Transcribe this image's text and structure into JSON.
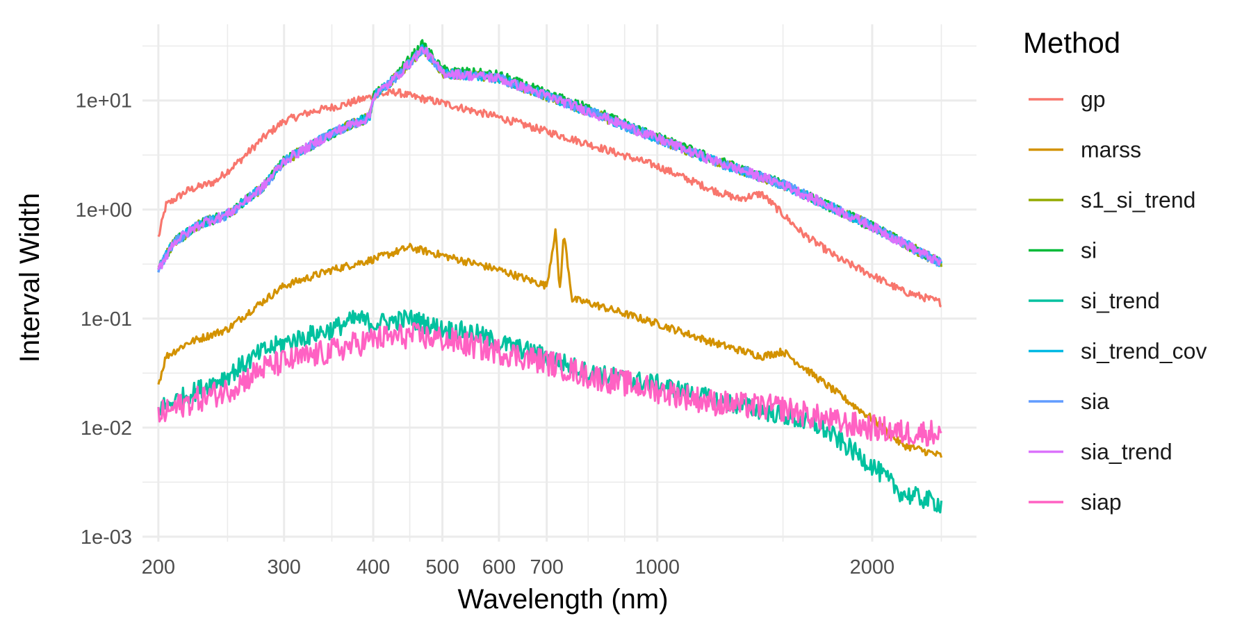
{
  "chart_data": {
    "type": "line",
    "title": "",
    "xlabel": "Wavelength (nm)",
    "ylabel": "Interval Width",
    "x_scale": "log",
    "y_scale": "log",
    "xlim": [
      190,
      2800
    ],
    "ylim": [
      0.0009,
      50
    ],
    "x_ticks": [
      200,
      300,
      400,
      500,
      600,
      700,
      1000,
      2000
    ],
    "x_tick_labels": [
      "200",
      "300",
      "400",
      "500",
      "600",
      "700",
      "1000",
      "2000"
    ],
    "x_minor_ticks": [
      250,
      350,
      450,
      800,
      900,
      1500,
      2500
    ],
    "y_ticks": [
      0.001,
      0.01,
      0.1,
      1,
      10
    ],
    "y_tick_labels": [
      "1e-03",
      "1e-02",
      "1e-01",
      "1e+00",
      "1e+01"
    ],
    "grid": true,
    "legend": {
      "title": "Method",
      "position": "right"
    },
    "series": [
      {
        "name": "gp",
        "color": "#F8766D",
        "x": [
          200,
          205,
          220,
          240,
          260,
          280,
          300,
          330,
          360,
          400,
          430,
          450,
          500,
          600,
          700,
          800,
          1000,
          1200,
          1300,
          1400,
          1600,
          1800,
          2000,
          2200,
          2500
        ],
        "y": [
          0.55,
          1.1,
          1.5,
          1.8,
          2.8,
          4.5,
          6.5,
          8,
          9,
          11,
          12,
          11,
          9.5,
          7,
          5.2,
          4,
          2.5,
          1.5,
          1.25,
          1.4,
          0.6,
          0.35,
          0.25,
          0.18,
          0.14
        ]
      },
      {
        "name": "marss",
        "color": "#D39200",
        "x": [
          200,
          205,
          220,
          250,
          270,
          300,
          350,
          400,
          450,
          500,
          600,
          700,
          720,
          730,
          740,
          760,
          800,
          1000,
          1200,
          1400,
          1500,
          1800,
          2000,
          2200,
          2500
        ],
        "y": [
          0.025,
          0.045,
          0.06,
          0.08,
          0.12,
          0.2,
          0.28,
          0.35,
          0.45,
          0.38,
          0.28,
          0.2,
          0.65,
          0.18,
          0.6,
          0.15,
          0.14,
          0.09,
          0.06,
          0.045,
          0.05,
          0.02,
          0.012,
          0.007,
          0.0055
        ]
      },
      {
        "name": "s1_si_trend",
        "color": "#93AA00",
        "x": [
          200,
          210,
          230,
          250,
          280,
          300,
          330,
          360,
          395,
          400,
          420,
          450,
          470,
          500,
          600,
          700,
          800,
          1000,
          1200,
          1500,
          2000,
          2500
        ],
        "y": [
          0.28,
          0.5,
          0.75,
          0.9,
          1.6,
          2.8,
          4,
          5.5,
          7,
          11,
          14,
          22,
          30,
          18,
          16,
          11,
          8,
          4.5,
          2.8,
          1.7,
          0.7,
          0.32
        ]
      },
      {
        "name": "si",
        "color": "#00BA38",
        "x": [
          200,
          210,
          230,
          250,
          280,
          300,
          330,
          360,
          395,
          400,
          420,
          450,
          470,
          500,
          600,
          700,
          800,
          1000,
          1200,
          1500,
          2000,
          2500
        ],
        "y": [
          0.28,
          0.5,
          0.75,
          0.9,
          1.6,
          2.8,
          4,
          5.5,
          7,
          11,
          14,
          24,
          33,
          19,
          17,
          11.5,
          8.5,
          4.6,
          2.9,
          1.7,
          0.7,
          0.32
        ]
      },
      {
        "name": "si_trend",
        "color": "#00C19F",
        "x": [
          200,
          220,
          250,
          280,
          300,
          350,
          380,
          400,
          450,
          500,
          550,
          600,
          700,
          800,
          1000,
          1200,
          1500,
          1700,
          2000,
          2200,
          2500
        ],
        "y": [
          0.015,
          0.02,
          0.03,
          0.05,
          0.06,
          0.08,
          0.1,
          0.09,
          0.1,
          0.08,
          0.075,
          0.06,
          0.045,
          0.032,
          0.025,
          0.018,
          0.013,
          0.01,
          0.0045,
          0.0025,
          0.002
        ]
      },
      {
        "name": "si_trend_cov",
        "color": "#00B9E3",
        "x": [
          200,
          210,
          230,
          250,
          280,
          300,
          330,
          360,
          395,
          400,
          420,
          450,
          470,
          500,
          600,
          700,
          800,
          1000,
          1200,
          1500,
          2000,
          2500
        ],
        "y": [
          0.28,
          0.5,
          0.75,
          0.9,
          1.6,
          2.8,
          4,
          5.5,
          7,
          11,
          14,
          22,
          30,
          18,
          16,
          11,
          8,
          4.5,
          2.8,
          1.7,
          0.7,
          0.32
        ]
      },
      {
        "name": "sia",
        "color": "#619CFF",
        "x": [
          200,
          210,
          230,
          250,
          280,
          300,
          330,
          360,
          395,
          400,
          420,
          450,
          470,
          500,
          600,
          700,
          800,
          1000,
          1200,
          1500,
          2000,
          2500
        ],
        "y": [
          0.28,
          0.5,
          0.75,
          0.9,
          1.6,
          2.8,
          4,
          5.5,
          7,
          11,
          14,
          22,
          30,
          18,
          16,
          11,
          8,
          4.5,
          2.8,
          1.7,
          0.7,
          0.32
        ]
      },
      {
        "name": "sia_trend",
        "color": "#DB72FB",
        "x": [
          200,
          210,
          230,
          250,
          280,
          300,
          330,
          360,
          395,
          400,
          420,
          450,
          470,
          500,
          600,
          700,
          800,
          1000,
          1200,
          1500,
          2000,
          2500
        ],
        "y": [
          0.28,
          0.5,
          0.75,
          0.9,
          1.6,
          2.8,
          4,
          5.5,
          7,
          11,
          14,
          22,
          30,
          18,
          16,
          11,
          8,
          4.5,
          2.8,
          1.7,
          0.7,
          0.32
        ]
      },
      {
        "name": "siap",
        "color": "#FF61C3",
        "x": [
          200,
          220,
          250,
          280,
          300,
          350,
          400,
          450,
          500,
          600,
          700,
          800,
          1000,
          1200,
          1300,
          1500,
          1800,
          2000,
          2200,
          2500
        ],
        "y": [
          0.013,
          0.017,
          0.022,
          0.035,
          0.04,
          0.05,
          0.065,
          0.07,
          0.065,
          0.05,
          0.04,
          0.03,
          0.022,
          0.017,
          0.016,
          0.015,
          0.011,
          0.01,
          0.009,
          0.009
        ]
      }
    ]
  }
}
